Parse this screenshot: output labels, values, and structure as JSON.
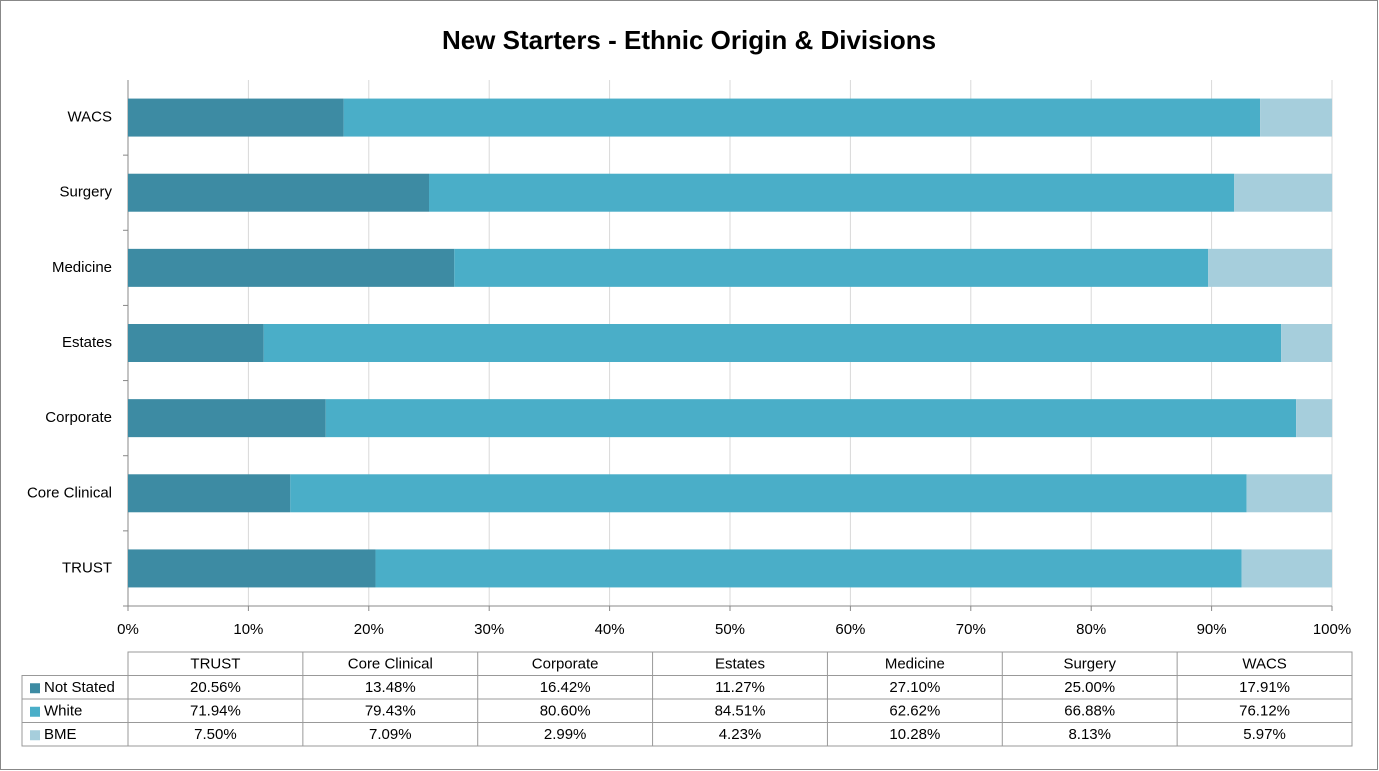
{
  "chart_data": {
    "type": "stacked-barh",
    "title": "New Starters - Ethnic Origin & Divisions",
    "categories": [
      "TRUST",
      "Core Clinical",
      "Corporate",
      "Estates",
      "Medicine",
      "Surgery",
      "WACS"
    ],
    "series": [
      {
        "name": "Not Stated",
        "color": "#3d8ba3",
        "values": [
          20.56,
          13.48,
          16.42,
          11.27,
          27.1,
          25.0,
          17.91
        ],
        "value_labels": [
          "20.56%",
          "13.48%",
          "16.42%",
          "11.27%",
          "27.10%",
          "25.00%",
          "17.91%"
        ]
      },
      {
        "name": "White",
        "color": "#4aaec8",
        "values": [
          71.94,
          79.43,
          80.6,
          84.51,
          62.62,
          66.88,
          76.12
        ],
        "value_labels": [
          "71.94%",
          "79.43%",
          "80.60%",
          "84.51%",
          "62.62%",
          "66.88%",
          "76.12%"
        ]
      },
      {
        "name": "BME",
        "color": "#a6cedc",
        "values": [
          7.5,
          7.09,
          2.99,
          4.23,
          10.28,
          8.13,
          5.97
        ],
        "value_labels": [
          "7.50%",
          "7.09%",
          "2.99%",
          "4.23%",
          "10.28%",
          "8.13%",
          "5.97%"
        ]
      }
    ],
    "xlim": [
      0,
      100
    ],
    "xticks": [
      {
        "value": 0,
        "label": "0%"
      },
      {
        "value": 10,
        "label": "10%"
      },
      {
        "value": 20,
        "label": "20%"
      },
      {
        "value": 30,
        "label": "30%"
      },
      {
        "value": 40,
        "label": "40%"
      },
      {
        "value": 50,
        "label": "50%"
      },
      {
        "value": 60,
        "label": "60%"
      },
      {
        "value": 70,
        "label": "70%"
      },
      {
        "value": 80,
        "label": "80%"
      },
      {
        "value": 90,
        "label": "90%"
      },
      {
        "value": 100,
        "label": "100%"
      }
    ],
    "grid": true
  }
}
